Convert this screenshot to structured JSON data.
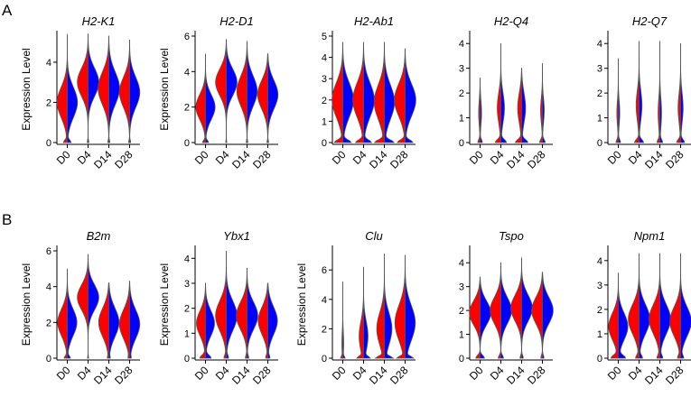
{
  "figure": {
    "panel_labels": [
      "A",
      "B"
    ],
    "ylabel": "Expression Level",
    "colors": {
      "left_half": "#ff0000",
      "right_half": "#0000ff",
      "outline": "#555555"
    }
  },
  "chart_data": [
    {
      "type": "violin",
      "title": "H2-K1",
      "row": "A",
      "categories": [
        "D0",
        "D4",
        "D14",
        "D28"
      ],
      "ylabel": "Expression Level",
      "ylim": [
        0,
        5.3
      ],
      "yticks": [
        0,
        2,
        4
      ],
      "series": [
        {
          "name": "red",
          "values": [
            2.0,
            3.0,
            2.6,
            2.5
          ]
        },
        {
          "name": "blue",
          "values": [
            2.2,
            3.1,
            2.8,
            2.6
          ]
        }
      ],
      "violins": [
        {
          "min": 0,
          "max": 5.4,
          "mode": 2.0,
          "spread": 0.75,
          "zero": 0.35,
          "w": 0.9
        },
        {
          "min": 0,
          "max": 5.4,
          "mode": 3.0,
          "spread": 0.7,
          "zero": 0.08,
          "w": 0.95
        },
        {
          "min": 0,
          "max": 5.3,
          "mode": 2.7,
          "spread": 0.8,
          "zero": 0.1,
          "w": 0.95
        },
        {
          "min": 0,
          "max": 5.1,
          "mode": 2.5,
          "spread": 0.75,
          "zero": 0.1,
          "w": 0.9
        }
      ]
    },
    {
      "type": "violin",
      "title": "H2-D1",
      "row": "A",
      "categories": [
        "D0",
        "D4",
        "D14",
        "D28"
      ],
      "ylabel": "Expression Level",
      "ylim": [
        0,
        6
      ],
      "yticks": [
        0,
        2,
        4,
        6
      ],
      "series": [
        {
          "name": "red",
          "values": [
            1.9,
            3.3,
            2.9,
            2.5
          ]
        },
        {
          "name": "blue",
          "values": [
            2.3,
            3.5,
            3.1,
            2.9
          ]
        }
      ],
      "violins": [
        {
          "min": 0,
          "max": 5.0,
          "mode": 2.0,
          "spread": 0.7,
          "zero": 0.3,
          "w": 0.85
        },
        {
          "min": 0,
          "max": 5.8,
          "mode": 3.4,
          "spread": 0.75,
          "zero": 0.05,
          "w": 0.95
        },
        {
          "min": 0,
          "max": 5.7,
          "mode": 2.9,
          "spread": 0.85,
          "zero": 0.08,
          "w": 0.9
        },
        {
          "min": 0,
          "max": 5.0,
          "mode": 2.7,
          "spread": 0.8,
          "zero": 0.08,
          "w": 0.9
        }
      ]
    },
    {
      "type": "violin",
      "title": "H2-Ab1",
      "row": "A",
      "categories": [
        "D0",
        "D4",
        "D14",
        "D28"
      ],
      "ylabel": "",
      "ylim": [
        0,
        5
      ],
      "yticks": [
        0,
        1,
        2,
        3,
        4,
        5
      ],
      "series": [
        {
          "name": "red",
          "values": [
            2.0,
            2.1,
            2.0,
            1.9
          ]
        },
        {
          "name": "blue",
          "values": [
            2.1,
            2.1,
            1.9,
            2.0
          ]
        }
      ],
      "violins": [
        {
          "min": 0,
          "max": 4.7,
          "mode": 2.0,
          "spread": 0.8,
          "zero": 0.75,
          "w": 0.95
        },
        {
          "min": 0,
          "max": 4.7,
          "mode": 2.0,
          "spread": 0.8,
          "zero": 0.7,
          "w": 0.95
        },
        {
          "min": 0,
          "max": 4.7,
          "mode": 1.9,
          "spread": 0.8,
          "zero": 0.9,
          "w": 0.9
        },
        {
          "min": 0,
          "max": 4.4,
          "mode": 2.0,
          "spread": 0.75,
          "zero": 0.7,
          "w": 0.95
        }
      ]
    },
    {
      "type": "violin",
      "title": "H2-Q4",
      "row": "A",
      "categories": [
        "D0",
        "D4",
        "D14",
        "D28"
      ],
      "ylabel": "",
      "ylim": [
        0,
        4.3
      ],
      "yticks": [
        0,
        1,
        2,
        3,
        4
      ],
      "series": [
        {
          "name": "red",
          "values": [
            0.1,
            0.3,
            0.2,
            0.1
          ]
        },
        {
          "name": "blue",
          "values": [
            0.1,
            0.4,
            0.5,
            0.2
          ]
        }
      ],
      "violins": [
        {
          "min": 0,
          "max": 2.6,
          "mode": 1.2,
          "spread": 0.5,
          "zero": 1.5,
          "w": 0.2
        },
        {
          "min": 0,
          "max": 4.0,
          "mode": 1.4,
          "spread": 0.6,
          "zero": 1.5,
          "w": 0.5
        },
        {
          "min": 0,
          "max": 3.0,
          "mode": 1.4,
          "spread": 0.6,
          "zero": 1.5,
          "w": 0.55
        },
        {
          "min": 0,
          "max": 3.2,
          "mode": 1.3,
          "spread": 0.5,
          "zero": 1.5,
          "w": 0.25
        }
      ]
    },
    {
      "type": "violin",
      "title": "H2-Q7",
      "row": "A",
      "categories": [
        "D0",
        "D4",
        "D14",
        "D28"
      ],
      "ylabel": "",
      "ylim": [
        0,
        4.3
      ],
      "yticks": [
        0,
        1,
        2,
        3,
        4
      ],
      "series": [
        {
          "name": "red",
          "values": [
            0.1,
            0.5,
            0.2,
            0.2
          ]
        },
        {
          "name": "blue",
          "values": [
            0.1,
            0.5,
            0.3,
            0.4
          ]
        }
      ],
      "violins": [
        {
          "min": 0,
          "max": 3.4,
          "mode": 1.2,
          "spread": 0.5,
          "zero": 1.5,
          "w": 0.2
        },
        {
          "min": 0,
          "max": 4.1,
          "mode": 1.5,
          "spread": 0.6,
          "zero": 1.5,
          "w": 0.4
        },
        {
          "min": 0,
          "max": 4.1,
          "mode": 1.2,
          "spread": 0.6,
          "zero": 1.5,
          "w": 0.25
        },
        {
          "min": 0,
          "max": 4.0,
          "mode": 1.4,
          "spread": 0.6,
          "zero": 1.5,
          "w": 0.35
        }
      ]
    },
    {
      "type": "violin",
      "title": "B2m",
      "row": "B",
      "categories": [
        "D0",
        "D4",
        "D14",
        "D28"
      ],
      "ylabel": "Expression Level",
      "ylim": [
        0,
        6
      ],
      "yticks": [
        0,
        2,
        4,
        6
      ],
      "series": [
        {
          "name": "red",
          "values": [
            1.9,
            3.3,
            1.9,
            1.8
          ]
        },
        {
          "name": "blue",
          "values": [
            2.1,
            3.4,
            2.0,
            2.0
          ]
        }
      ],
      "violins": [
        {
          "min": 0,
          "max": 5.0,
          "mode": 2.0,
          "spread": 0.75,
          "zero": 0.3,
          "w": 0.85
        },
        {
          "min": 0,
          "max": 5.8,
          "mode": 3.4,
          "spread": 0.7,
          "zero": 0.05,
          "w": 0.95
        },
        {
          "min": 0,
          "max": 4.2,
          "mode": 2.0,
          "spread": 0.8,
          "zero": 0.1,
          "w": 0.9
        },
        {
          "min": 0,
          "max": 4.3,
          "mode": 1.9,
          "spread": 0.8,
          "zero": 0.1,
          "w": 0.9
        }
      ]
    },
    {
      "type": "violin",
      "title": "Ybx1",
      "row": "B",
      "categories": [
        "D0",
        "D4",
        "D14",
        "D28"
      ],
      "ylabel": "Expression Level",
      "ylim": [
        0,
        4.3
      ],
      "yticks": [
        0,
        1,
        2,
        3,
        4
      ],
      "series": [
        {
          "name": "red",
          "values": [
            1.3,
            1.6,
            1.6,
            1.5
          ]
        },
        {
          "name": "blue",
          "values": [
            1.4,
            1.7,
            1.7,
            1.5
          ]
        }
      ],
      "violins": [
        {
          "min": 0,
          "max": 3.0,
          "mode": 1.4,
          "spread": 0.5,
          "zero": 0.6,
          "w": 0.8
        },
        {
          "min": 0,
          "max": 4.3,
          "mode": 1.7,
          "spread": 0.6,
          "zero": 0.2,
          "w": 0.95
        },
        {
          "min": 0,
          "max": 3.6,
          "mode": 1.7,
          "spread": 0.55,
          "zero": 0.15,
          "w": 0.95
        },
        {
          "min": 0,
          "max": 3.0,
          "mode": 1.5,
          "spread": 0.55,
          "zero": 0.2,
          "w": 0.85
        }
      ]
    },
    {
      "type": "violin",
      "title": "Clu",
      "row": "B",
      "categories": [
        "D0",
        "D4",
        "D14",
        "D28"
      ],
      "ylabel": "Expression Level",
      "ylim": [
        0,
        7.3
      ],
      "yticks": [
        0,
        2,
        4,
        6
      ],
      "series": [
        {
          "name": "red",
          "values": [
            0.1,
            1.0,
            1.5,
            2.0
          ]
        },
        {
          "name": "blue",
          "values": [
            0.2,
            1.5,
            2.0,
            2.5
          ]
        }
      ],
      "violins": [
        {
          "min": 0,
          "max": 5.2,
          "mode": 1.0,
          "spread": 0.8,
          "zero": 2.0,
          "w": 0.2
        },
        {
          "min": 0,
          "max": 6.2,
          "mode": 1.5,
          "spread": 1.0,
          "zero": 1.2,
          "w": 0.6
        },
        {
          "min": 0,
          "max": 7.1,
          "mode": 2.0,
          "spread": 1.1,
          "zero": 1.0,
          "w": 0.8
        },
        {
          "min": 0,
          "max": 7.0,
          "mode": 2.4,
          "spread": 1.2,
          "zero": 0.7,
          "w": 0.9
        }
      ]
    },
    {
      "type": "violin",
      "title": "Tspo",
      "row": "B",
      "categories": [
        "D0",
        "D4",
        "D14",
        "D28"
      ],
      "ylabel": "",
      "ylim": [
        0,
        4.5
      ],
      "yticks": [
        0,
        1,
        2,
        3,
        4
      ],
      "series": [
        {
          "name": "red",
          "values": [
            1.8,
            1.9,
            2.0,
            2.0
          ]
        },
        {
          "name": "blue",
          "values": [
            1.9,
            2.0,
            2.1,
            2.1
          ]
        }
      ],
      "violins": [
        {
          "min": 0,
          "max": 3.4,
          "mode": 1.9,
          "spread": 0.5,
          "zero": 0.4,
          "w": 0.95
        },
        {
          "min": 0,
          "max": 4.0,
          "mode": 2.0,
          "spread": 0.55,
          "zero": 0.25,
          "w": 0.95
        },
        {
          "min": 0,
          "max": 4.2,
          "mode": 2.1,
          "spread": 0.55,
          "zero": 0.15,
          "w": 0.95
        },
        {
          "min": 0,
          "max": 3.6,
          "mode": 2.0,
          "spread": 0.55,
          "zero": 0.15,
          "w": 0.95
        }
      ]
    },
    {
      "type": "violin",
      "title": "Npm1",
      "row": "B",
      "categories": [
        "D0",
        "D4",
        "D14",
        "D28"
      ],
      "ylabel": "",
      "ylim": [
        0,
        4.4
      ],
      "yticks": [
        0,
        1,
        2,
        3,
        4
      ],
      "series": [
        {
          "name": "red",
          "values": [
            1.2,
            1.5,
            1.5,
            1.4
          ]
        },
        {
          "name": "blue",
          "values": [
            1.3,
            1.6,
            1.6,
            1.5
          ]
        }
      ],
      "violins": [
        {
          "min": 0,
          "max": 3.5,
          "mode": 1.3,
          "spread": 0.55,
          "zero": 0.7,
          "w": 0.85
        },
        {
          "min": 0,
          "max": 4.3,
          "mode": 1.6,
          "spread": 0.6,
          "zero": 0.3,
          "w": 0.95
        },
        {
          "min": 0,
          "max": 4.3,
          "mode": 1.6,
          "spread": 0.6,
          "zero": 0.25,
          "w": 0.95
        },
        {
          "min": 0,
          "max": 4.3,
          "mode": 1.5,
          "spread": 0.6,
          "zero": 0.25,
          "w": 0.95
        }
      ]
    }
  ]
}
